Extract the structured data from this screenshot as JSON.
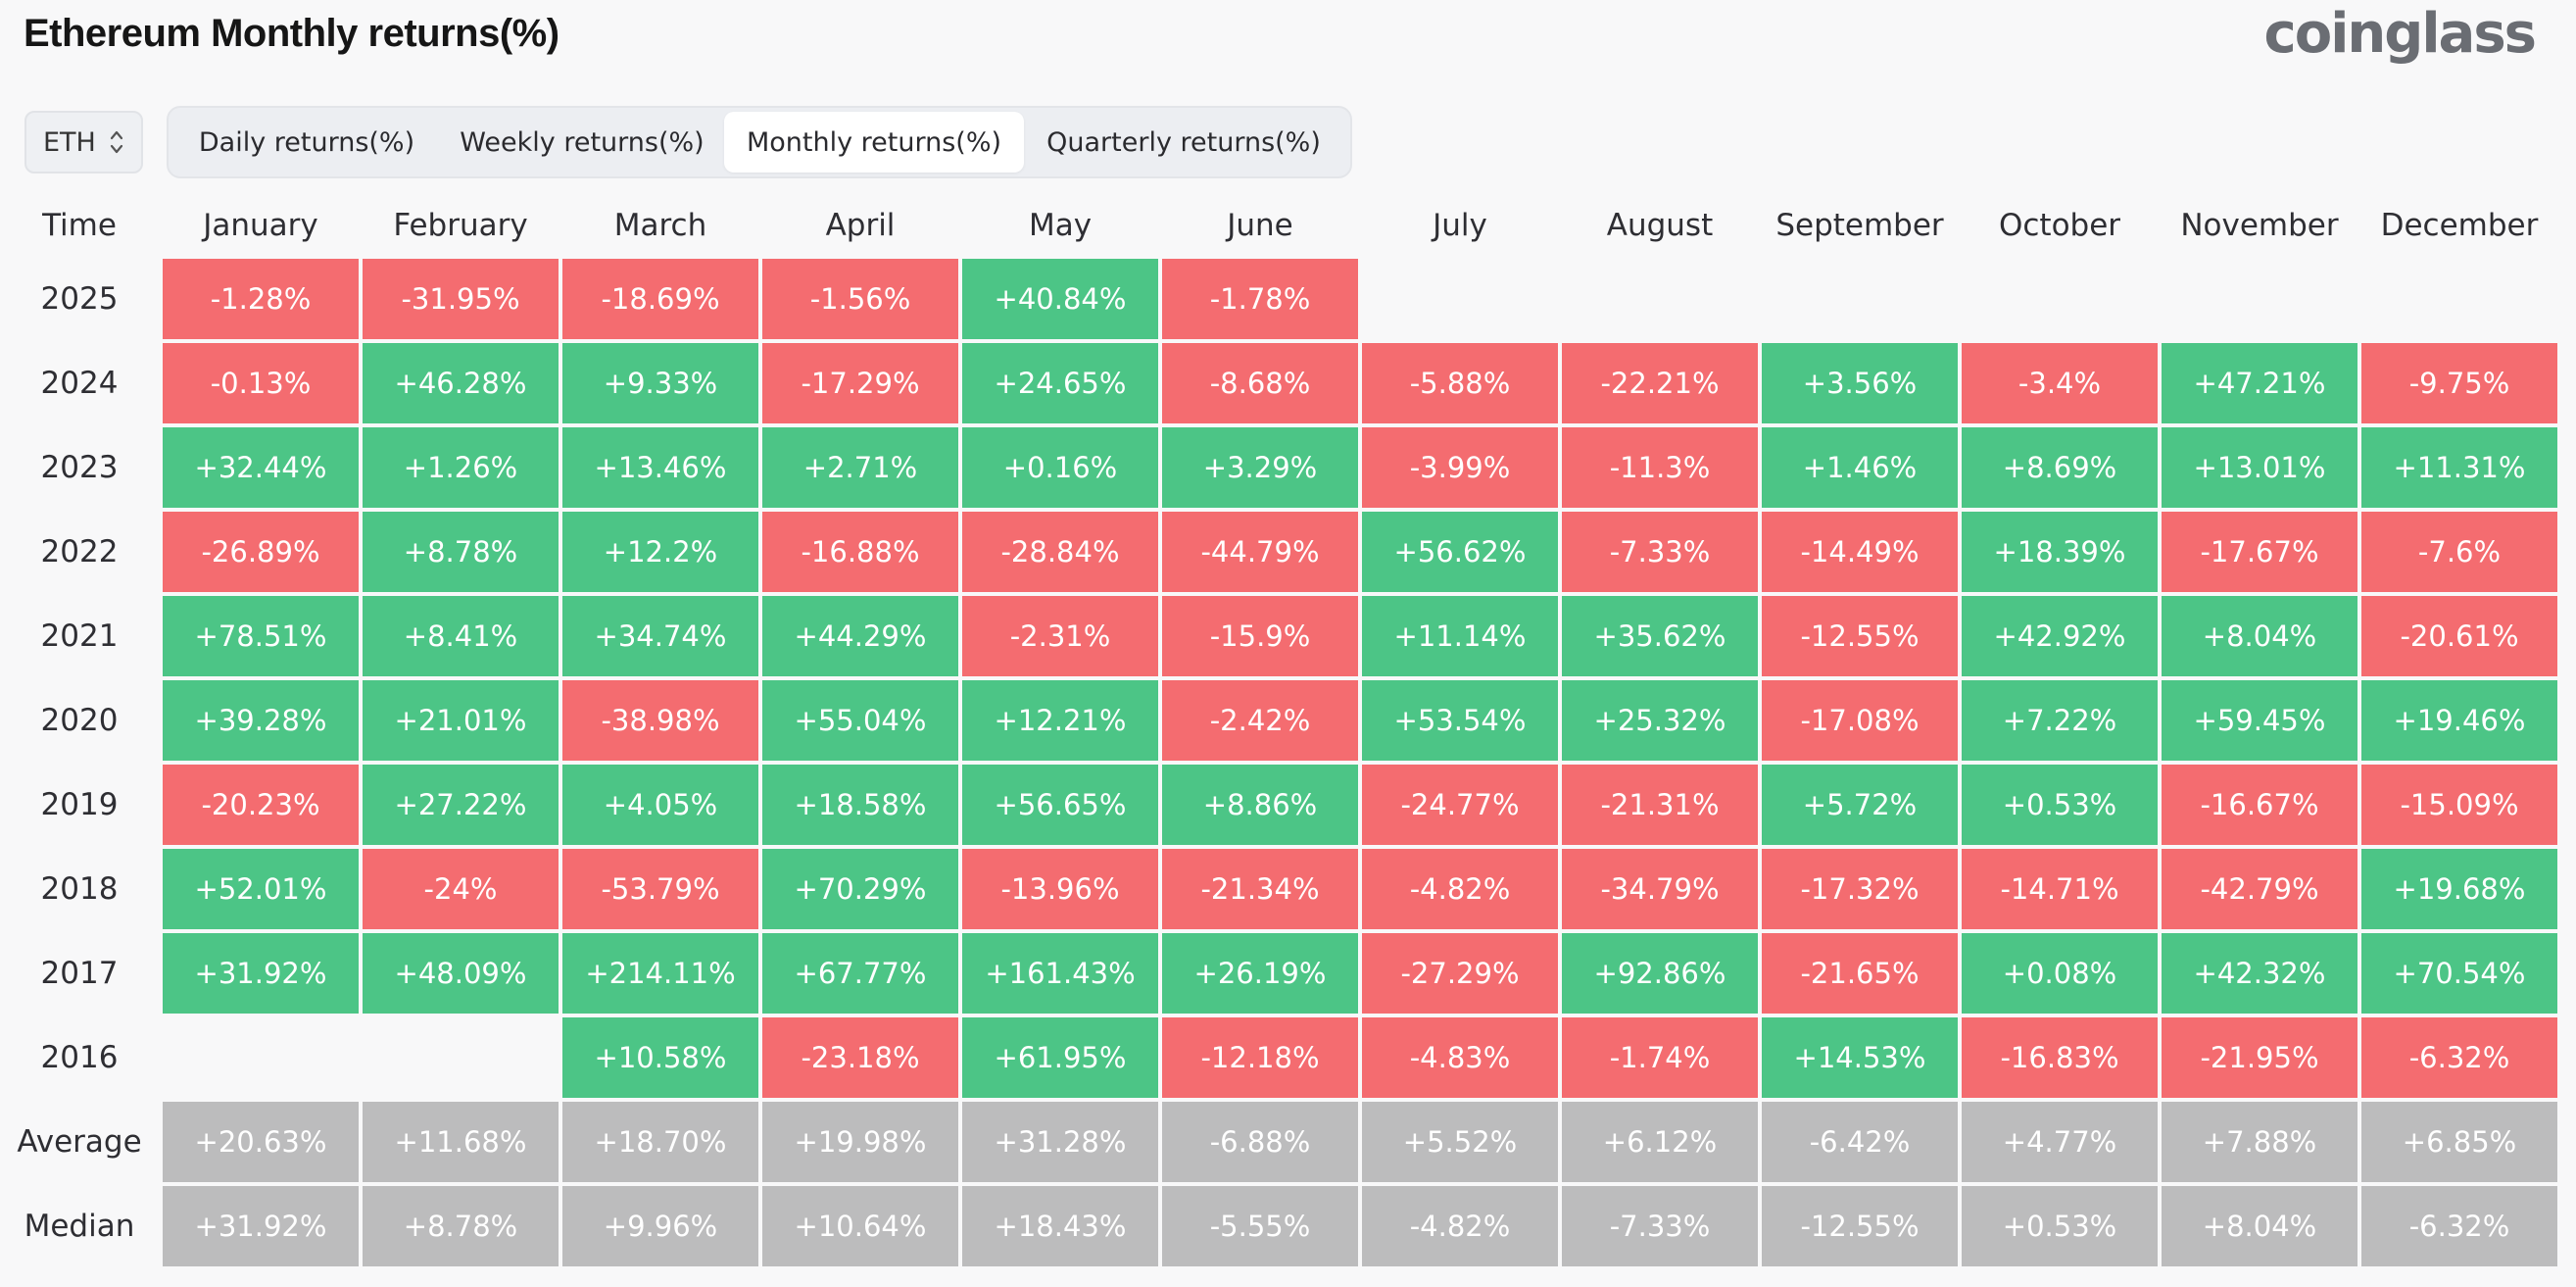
{
  "header": {
    "title": "Ethereum Monthly returns(%)",
    "brand": "coinglass"
  },
  "symbol_select": {
    "value": "ETH",
    "icon": "chevron-up-down-icon"
  },
  "tabs": [
    {
      "label": "Daily returns(%)",
      "active": false
    },
    {
      "label": "Weekly returns(%)",
      "active": false
    },
    {
      "label": "Monthly returns(%)",
      "active": true
    },
    {
      "label": "Quarterly returns(%)",
      "active": false
    }
  ],
  "colors": {
    "positive": "#4cc586",
    "negative": "#f46c70",
    "neutral": "#bcbcbd"
  },
  "table": {
    "time_header": "Time",
    "months": [
      "January",
      "February",
      "March",
      "April",
      "May",
      "June",
      "July",
      "August",
      "September",
      "October",
      "November",
      "December"
    ],
    "rows": [
      {
        "year": "2025",
        "values": [
          "-1.28%",
          "-31.95%",
          "-18.69%",
          "-1.56%",
          "+40.84%",
          "-1.78%",
          "",
          "",
          "",
          "",
          "",
          ""
        ]
      },
      {
        "year": "2024",
        "values": [
          "-0.13%",
          "+46.28%",
          "+9.33%",
          "-17.29%",
          "+24.65%",
          "-8.68%",
          "-5.88%",
          "-22.21%",
          "+3.56%",
          "-3.4%",
          "+47.21%",
          "-9.75%"
        ]
      },
      {
        "year": "2023",
        "values": [
          "+32.44%",
          "+1.26%",
          "+13.46%",
          "+2.71%",
          "+0.16%",
          "+3.29%",
          "-3.99%",
          "-11.3%",
          "+1.46%",
          "+8.69%",
          "+13.01%",
          "+11.31%"
        ]
      },
      {
        "year": "2022",
        "values": [
          "-26.89%",
          "+8.78%",
          "+12.2%",
          "-16.88%",
          "-28.84%",
          "-44.79%",
          "+56.62%",
          "-7.33%",
          "-14.49%",
          "+18.39%",
          "-17.67%",
          "-7.6%"
        ]
      },
      {
        "year": "2021",
        "values": [
          "+78.51%",
          "+8.41%",
          "+34.74%",
          "+44.29%",
          "-2.31%",
          "-15.9%",
          "+11.14%",
          "+35.62%",
          "-12.55%",
          "+42.92%",
          "+8.04%",
          "-20.61%"
        ]
      },
      {
        "year": "2020",
        "values": [
          "+39.28%",
          "+21.01%",
          "-38.98%",
          "+55.04%",
          "+12.21%",
          "-2.42%",
          "+53.54%",
          "+25.32%",
          "-17.08%",
          "+7.22%",
          "+59.45%",
          "+19.46%"
        ]
      },
      {
        "year": "2019",
        "values": [
          "-20.23%",
          "+27.22%",
          "+4.05%",
          "+18.58%",
          "+56.65%",
          "+8.86%",
          "-24.77%",
          "-21.31%",
          "+5.72%",
          "+0.53%",
          "-16.67%",
          "-15.09%"
        ]
      },
      {
        "year": "2018",
        "values": [
          "+52.01%",
          "-24%",
          "-53.79%",
          "+70.29%",
          "-13.96%",
          "-21.34%",
          "-4.82%",
          "-34.79%",
          "-17.32%",
          "-14.71%",
          "-42.79%",
          "+19.68%"
        ]
      },
      {
        "year": "2017",
        "values": [
          "+31.92%",
          "+48.09%",
          "+214.11%",
          "+67.77%",
          "+161.43%",
          "+26.19%",
          "-27.29%",
          "+92.86%",
          "-21.65%",
          "+0.08%",
          "+42.32%",
          "+70.54%"
        ]
      },
      {
        "year": "2016",
        "values": [
          "",
          "",
          "+10.58%",
          "-23.18%",
          "+61.95%",
          "-12.18%",
          "-4.83%",
          "-1.74%",
          "+14.53%",
          "-16.83%",
          "-21.95%",
          "-6.32%"
        ]
      }
    ],
    "stats": [
      {
        "label": "Average",
        "values": [
          "+20.63%",
          "+11.68%",
          "+18.70%",
          "+19.98%",
          "+31.28%",
          "-6.88%",
          "+5.52%",
          "+6.12%",
          "-6.42%",
          "+4.77%",
          "+7.88%",
          "+6.85%"
        ]
      },
      {
        "label": "Median",
        "values": [
          "+31.92%",
          "+8.78%",
          "+9.96%",
          "+10.64%",
          "+18.43%",
          "-5.55%",
          "-4.82%",
          "-7.33%",
          "-12.55%",
          "+0.53%",
          "+8.04%",
          "-6.32%"
        ]
      }
    ]
  }
}
